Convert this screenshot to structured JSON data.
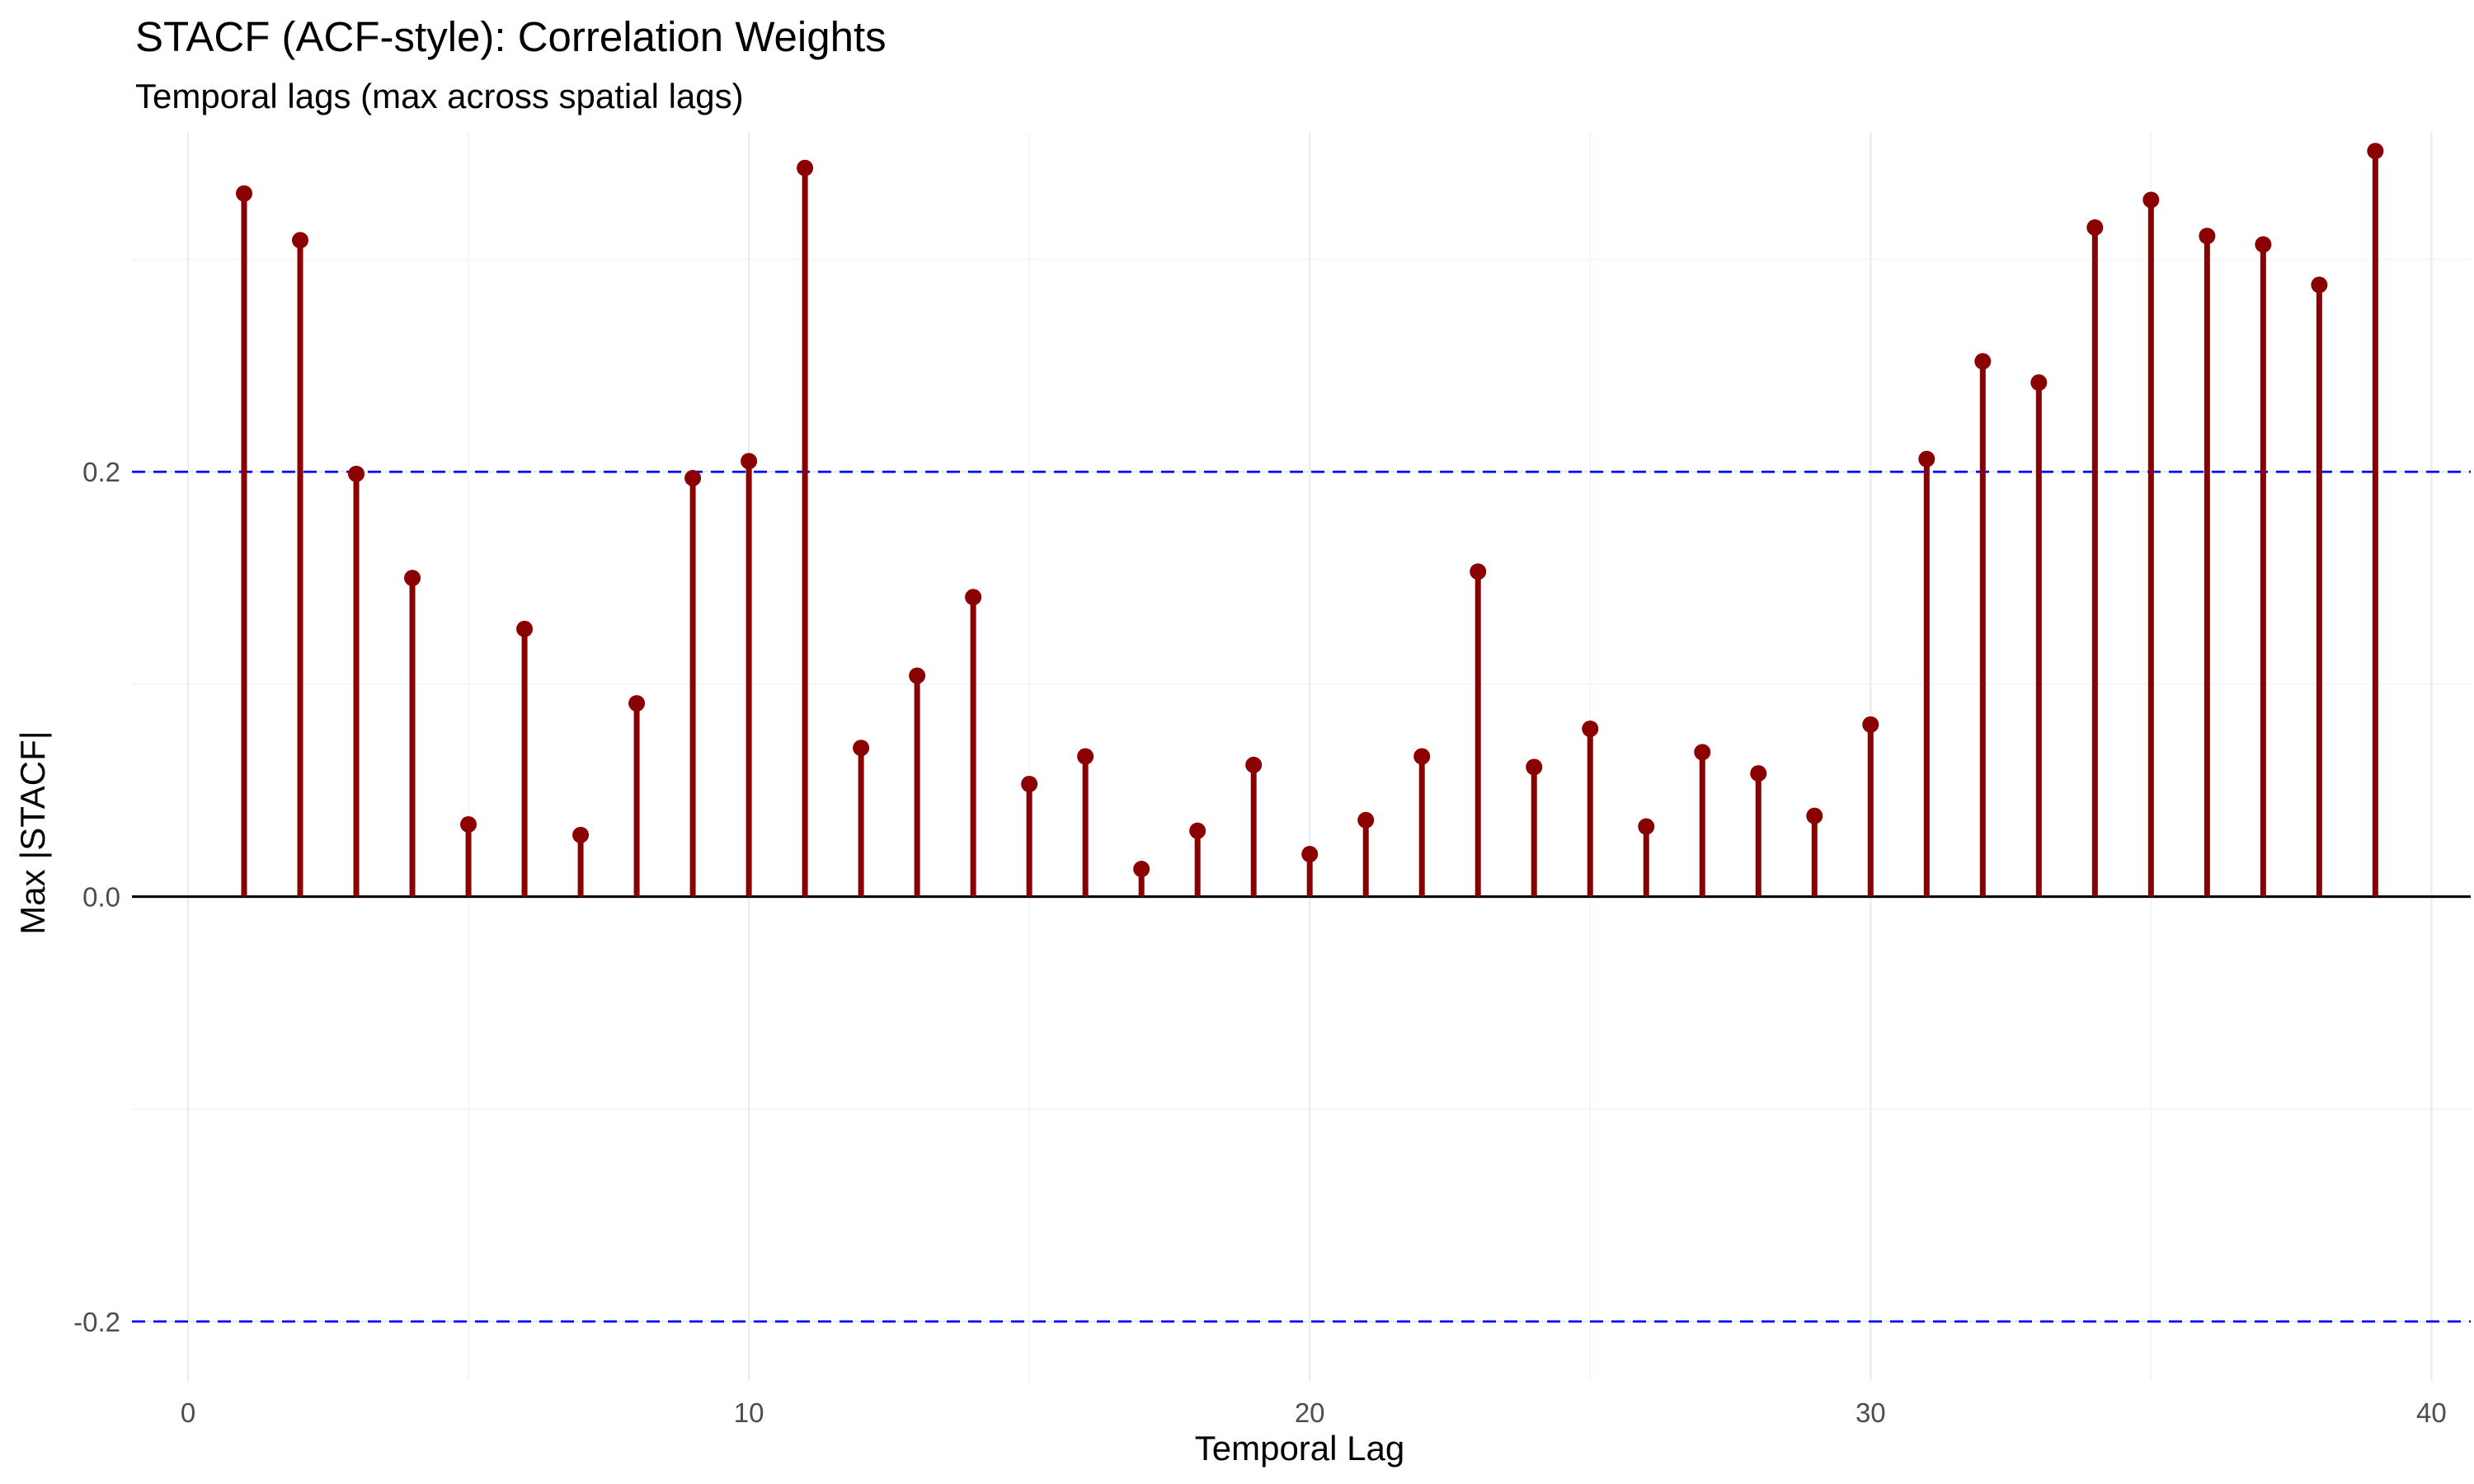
{
  "chart_data": {
    "type": "lollipop",
    "title": "STACF (ACF-style): Correlation Weights",
    "subtitle": "Temporal lags (max across spatial lags)",
    "xlabel": "Temporal Lag",
    "ylabel": "Max |STACF|",
    "xlim": [
      -1,
      40.7
    ],
    "ylim": [
      -0.228,
      0.36
    ],
    "x_ticks": [
      0,
      10,
      20,
      30,
      40
    ],
    "x_tick_labels": [
      "0",
      "10",
      "20",
      "30",
      "40"
    ],
    "y_ticks": [
      -0.2,
      0.0,
      0.2
    ],
    "y_tick_labels": [
      "-0.2",
      "0.0",
      "0.2"
    ],
    "x_minor_ticks": [
      5,
      15,
      25,
      35
    ],
    "y_minor_ticks": [
      -0.1,
      0.1,
      0.3
    ],
    "confidence_bounds": [
      0.2,
      -0.2
    ],
    "grid": true,
    "colors": {
      "stem": "#8b0000",
      "confidence": "#0000ff",
      "zero_line": "#000000"
    },
    "x": [
      1,
      2,
      3,
      4,
      5,
      6,
      7,
      8,
      9,
      10,
      11,
      12,
      13,
      14,
      15,
      16,
      17,
      18,
      19,
      20,
      21,
      22,
      23,
      24,
      25,
      26,
      27,
      28,
      29,
      30,
      31,
      32,
      33,
      34,
      35,
      36,
      37,
      38,
      39
    ],
    "values": [
      0.331,
      0.309,
      0.199,
      0.15,
      0.034,
      0.126,
      0.029,
      0.091,
      0.197,
      0.205,
      0.343,
      0.07,
      0.104,
      0.141,
      0.053,
      0.066,
      0.013,
      0.031,
      0.062,
      0.02,
      0.036,
      0.066,
      0.153,
      0.061,
      0.079,
      0.033,
      0.068,
      0.058,
      0.038,
      0.081,
      0.206,
      0.252,
      0.242,
      0.315,
      0.328,
      0.311,
      0.307,
      0.288,
      0.351
    ]
  }
}
